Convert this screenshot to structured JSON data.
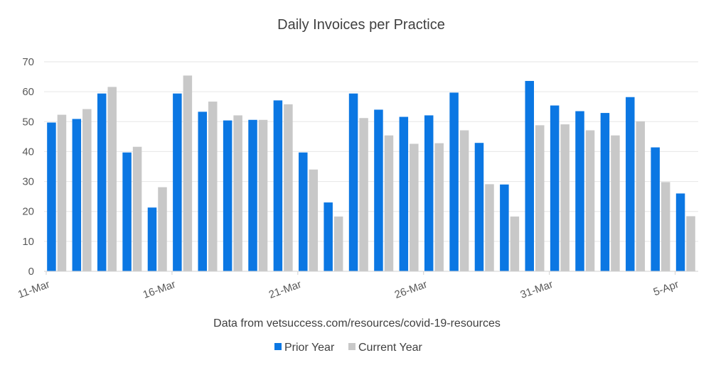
{
  "chart_data": {
    "type": "bar",
    "title": "Daily Invoices per Practice",
    "source_note": "Data from vetsuccess.com/resources/covid-19-resources",
    "xlabel": "",
    "ylabel": "",
    "ylim": [
      0,
      70
    ],
    "yticks": [
      0,
      10,
      20,
      30,
      40,
      50,
      60,
      70
    ],
    "grid": true,
    "legend_position": "bottom",
    "categories": [
      "11-Mar",
      "12-Mar",
      "13-Mar",
      "14-Mar",
      "15-Mar",
      "16-Mar",
      "17-Mar",
      "18-Mar",
      "19-Mar",
      "20-Mar",
      "21-Mar",
      "22-Mar",
      "23-Mar",
      "24-Mar",
      "25-Mar",
      "26-Mar",
      "27-Mar",
      "28-Mar",
      "29-Mar",
      "30-Mar",
      "31-Mar",
      "1-Apr",
      "2-Apr",
      "3-Apr",
      "4-Apr",
      "5-Apr"
    ],
    "x_tick_labels": [
      {
        "index": 0,
        "label": "11-Mar"
      },
      {
        "index": 5,
        "label": "16-Mar"
      },
      {
        "index": 10,
        "label": "21-Mar"
      },
      {
        "index": 15,
        "label": "26-Mar"
      },
      {
        "index": 20,
        "label": "31-Mar"
      },
      {
        "index": 25,
        "label": "5-Apr"
      }
    ],
    "series": [
      {
        "name": "Prior Year",
        "color": "#0b77e3",
        "values": [
          49.7,
          50.9,
          59.4,
          39.7,
          21.3,
          59.4,
          53.3,
          50.4,
          50.6,
          57.1,
          39.7,
          23.0,
          59.4,
          54.0,
          51.6,
          52.1,
          59.7,
          42.9,
          29.0,
          63.6,
          55.4,
          53.5,
          52.9,
          58.2,
          41.4,
          26.0
        ]
      },
      {
        "name": "Current Year",
        "color": "#c8c8c8",
        "values": [
          52.3,
          54.2,
          61.6,
          41.6,
          28.1,
          65.4,
          56.7,
          52.1,
          50.6,
          55.8,
          34.0,
          18.3,
          51.2,
          45.4,
          42.6,
          42.8,
          47.1,
          29.1,
          18.3,
          48.8,
          49.1,
          47.1,
          45.4,
          50.1,
          29.8,
          18.4
        ]
      }
    ]
  }
}
